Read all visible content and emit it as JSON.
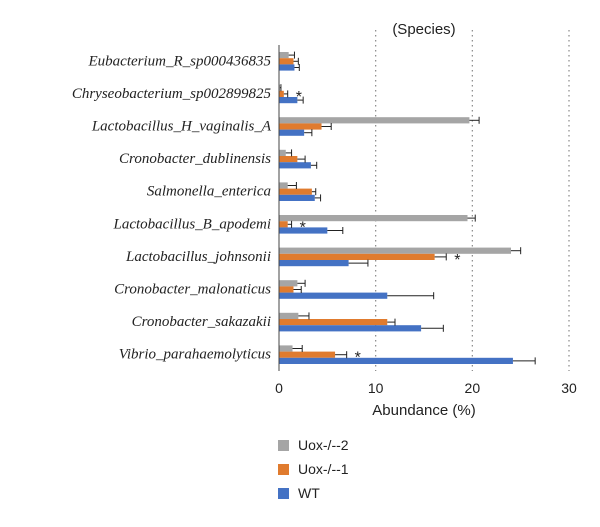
{
  "chart_data": {
    "type": "bar",
    "orientation": "horizontal",
    "title": "(Species)",
    "xlabel": "Abundance (%)",
    "ylabel": "",
    "xlim": [
      0,
      30
    ],
    "xticks": [
      "0",
      "10",
      "20",
      "30"
    ],
    "grid": "vertical dotted",
    "legend_position": "bottom-left",
    "categories": [
      "Eubacterium_R_sp000436835",
      "Chryseobacterium_sp002899825",
      "Lactobacillus_H_vaginalis_A",
      "Cronobacter_dublinensis",
      "Salmonella_enterica",
      "Lactobacillus_B_apodemi",
      "Lactobacillus_johnsonii",
      "Cronobacter_malonaticus",
      "Cronobacter_sakazakii",
      "Vibrio_parahaemolyticus"
    ],
    "series": [
      {
        "name": "Uox-/--2",
        "color": "#a5a5a5",
        "values": [
          1.0,
          0.1,
          19.7,
          0.7,
          0.9,
          19.5,
          24.0,
          1.9,
          2.0,
          1.4
        ],
        "errors": [
          0.6,
          0.1,
          1.0,
          0.6,
          0.9,
          0.8,
          1.0,
          0.8,
          1.1,
          1.0
        ]
      },
      {
        "name": "Uox-/--1",
        "color": "#e07b2e",
        "values": [
          1.5,
          0.5,
          4.4,
          1.9,
          3.4,
          0.9,
          16.1,
          1.5,
          11.2,
          5.8
        ],
        "errors": [
          0.5,
          0.4,
          1.0,
          0.8,
          0.4,
          0.4,
          1.2,
          0.8,
          0.8,
          1.2
        ]
      },
      {
        "name": "WT",
        "color": "#4472c4",
        "values": [
          1.6,
          1.9,
          2.6,
          3.3,
          3.7,
          5.0,
          7.2,
          11.2,
          14.7,
          24.2
        ],
        "errors": [
          0.5,
          0.6,
          0.8,
          0.6,
          0.6,
          1.6,
          2.0,
          4.8,
          2.3,
          2.3
        ]
      }
    ],
    "significance": [
      {
        "category": "Chryseobacterium_sp002899825",
        "label": "*"
      },
      {
        "category": "Lactobacillus_B_apodemi",
        "label": "*"
      },
      {
        "category": "Lactobacillus_johnsonii",
        "label": "*"
      },
      {
        "category": "Vibrio_parahaemolyticus",
        "label": "*"
      }
    ]
  }
}
